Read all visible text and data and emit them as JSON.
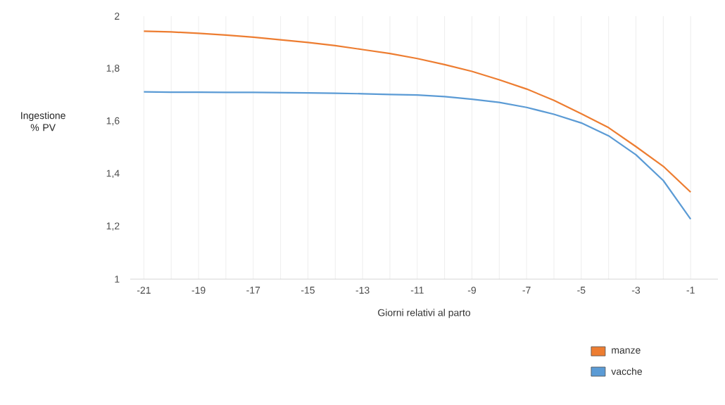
{
  "chart_data": {
    "type": "line",
    "xlabel": "Giorni relativi al parto",
    "ylabel": "Ingestione % PV",
    "x": [
      -21,
      -20,
      -19,
      -18,
      -17,
      -16,
      -15,
      -14,
      -13,
      -12,
      -11,
      -10,
      -9,
      -8,
      -7,
      -6,
      -5,
      -4,
      -3,
      -2,
      -1
    ],
    "series": [
      {
        "name": "manze",
        "color": "#ed7d31",
        "values": [
          1.943,
          1.94,
          1.935,
          1.928,
          1.92,
          1.91,
          1.9,
          1.888,
          1.873,
          1.858,
          1.839,
          1.816,
          1.79,
          1.758,
          1.723,
          1.68,
          1.629,
          1.576,
          1.504,
          1.429,
          1.331
        ]
      },
      {
        "name": "vacche",
        "color": "#5b9bd5",
        "values": [
          1.712,
          1.711,
          1.711,
          1.71,
          1.71,
          1.709,
          1.708,
          1.707,
          1.705,
          1.702,
          1.7,
          1.694,
          1.684,
          1.672,
          1.653,
          1.627,
          1.594,
          1.545,
          1.473,
          1.375,
          1.228
        ]
      }
    ],
    "xlim": [
      -21.5,
      0
    ],
    "ylim": [
      1,
      2
    ],
    "xticks": [
      -21,
      {
        "value": -20,
        "label": null
      },
      -19,
      {
        "value": -18,
        "label": null
      },
      -17,
      {
        "value": -16,
        "label": null
      },
      -15,
      {
        "value": -14,
        "label": null
      },
      -13,
      {
        "value": -12,
        "label": null
      },
      -11,
      {
        "value": -10,
        "label": null
      },
      -9,
      {
        "value": -8,
        "label": null
      },
      -7,
      {
        "value": -6,
        "label": null
      },
      -5,
      {
        "value": -4,
        "label": null
      },
      -3,
      {
        "value": -2,
        "label": null
      },
      -1
    ],
    "yticks": [
      1,
      {
        "value": 1.2,
        "label": "1,2"
      },
      {
        "value": 1.4,
        "label": "1,4"
      },
      {
        "value": 1.6,
        "label": "1,6"
      },
      {
        "value": 1.8,
        "label": "1,8"
      },
      2
    ],
    "grid": "x",
    "legend": "bottom right",
    "marker": "none",
    "line_style": "solid"
  }
}
